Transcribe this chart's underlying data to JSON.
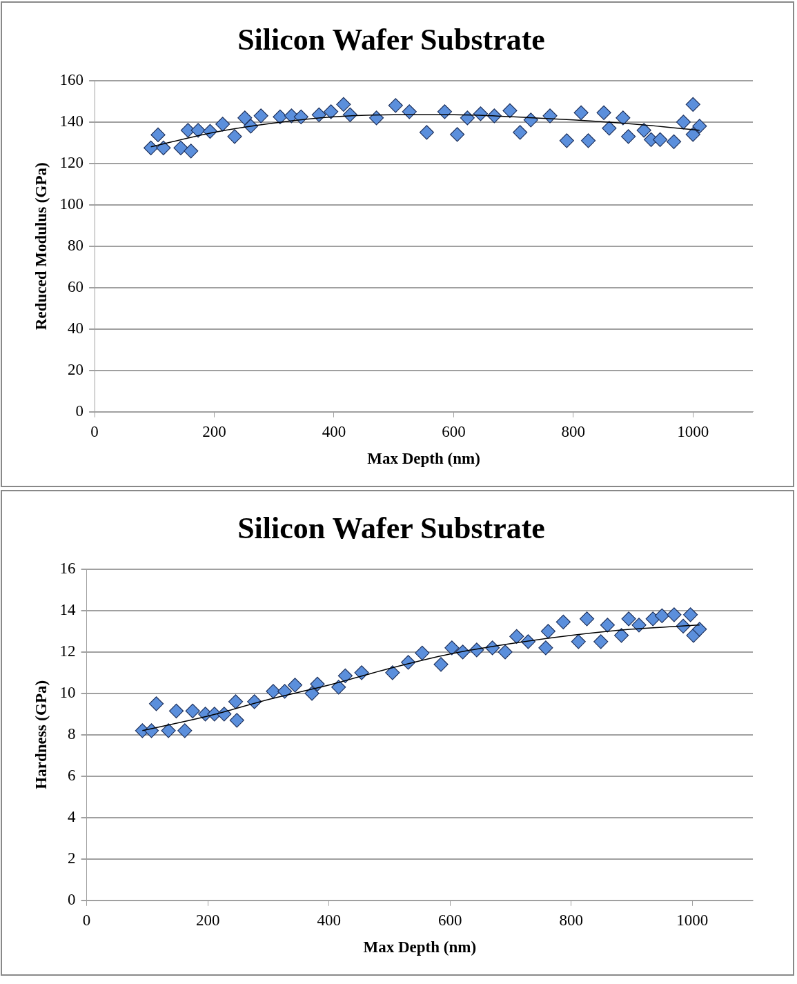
{
  "chart_data": [
    {
      "type": "scatter",
      "title": "Silicon Wafer Substrate",
      "xlabel": "Max Depth (nm)",
      "ylabel": "Reduced Modulus (GPa)",
      "xlim": [
        0,
        1100
      ],
      "xticks": [
        0,
        200,
        400,
        600,
        800,
        1000
      ],
      "ylim": [
        0,
        160
      ],
      "yticks": [
        0,
        20,
        40,
        60,
        80,
        100,
        120,
        140,
        160
      ],
      "grid": "y",
      "legend": false,
      "marker": "diamond",
      "series": [
        {
          "color": "#5b8fdc",
          "x": [
            94,
            106,
            115,
            144,
            156,
            161,
            173,
            193,
            214,
            234,
            251,
            261,
            278,
            310,
            329,
            345,
            375,
            395,
            416,
            427,
            471,
            503,
            526,
            555,
            585,
            606,
            623,
            645,
            668,
            694,
            711,
            729,
            761,
            789,
            813,
            825,
            851,
            860,
            883,
            892,
            918,
            930,
            945,
            968,
            984,
            1000,
            1000,
            1011
          ],
          "values": [
            127.5,
            133.8,
            127.5,
            127.5,
            136,
            126,
            136,
            135.5,
            139,
            133,
            142,
            138,
            143,
            142.5,
            143,
            142.5,
            143.5,
            145,
            148.5,
            143.5,
            142,
            148,
            145,
            135,
            145,
            134,
            142,
            144,
            143,
            145.5,
            135,
            141,
            143,
            131,
            144.5,
            131,
            144.5,
            137,
            142,
            133,
            136,
            131.5,
            131.5,
            130.5,
            140,
            148.5,
            134,
            138
          ]
        },
        {
          "type": "line",
          "color": "#000000",
          "marker": "none",
          "x": [
            94,
            200,
            300,
            400,
            500,
            600,
            700,
            800,
            900,
            1011
          ],
          "values": [
            128,
            135,
            139.5,
            142.5,
            143.5,
            143.5,
            142.5,
            141,
            139,
            136
          ]
        }
      ]
    },
    {
      "type": "scatter",
      "title": "Silicon Wafer Substrate",
      "xlabel": "Max Depth (nm)",
      "ylabel": "Hardness (GPa)",
      "xlim": [
        0,
        1100
      ],
      "xticks": [
        0,
        200,
        400,
        600,
        800,
        1000
      ],
      "ylim": [
        0,
        16
      ],
      "yticks": [
        0,
        2,
        4,
        6,
        8,
        10,
        12,
        14,
        16
      ],
      "grid": "y",
      "legend": false,
      "marker": "diamond",
      "series": [
        {
          "color": "#5b8fdc",
          "x": [
            92,
            107,
            115,
            135,
            148,
            162,
            175,
            196,
            211,
            227,
            246,
            248,
            277,
            308,
            327,
            344,
            372,
            381,
            416,
            427,
            454,
            505,
            531,
            554,
            585,
            603,
            621,
            644,
            670,
            691,
            710,
            729,
            758,
            762,
            787,
            812,
            826,
            849,
            860,
            883,
            895,
            912,
            935,
            950,
            970,
            985,
            997,
            1002,
            1012
          ],
          "values": [
            8.2,
            8.2,
            9.5,
            8.2,
            9.15,
            8.2,
            9.15,
            9.0,
            9.0,
            9.0,
            9.6,
            8.7,
            9.6,
            10.1,
            10.1,
            10.4,
            10.0,
            10.45,
            10.3,
            10.85,
            11.0,
            11.0,
            11.5,
            11.95,
            11.4,
            12.2,
            12.0,
            12.1,
            12.2,
            12.0,
            12.75,
            12.5,
            12.2,
            13.0,
            13.45,
            12.5,
            13.6,
            12.5,
            13.3,
            12.8,
            13.6,
            13.3,
            13.6,
            13.75,
            13.8,
            13.25,
            13.8,
            12.8,
            13.1
          ]
        },
        {
          "type": "line",
          "color": "#000000",
          "marker": "none",
          "x": [
            92,
            200,
            300,
            400,
            500,
            600,
            700,
            800,
            900,
            1012
          ],
          "values": [
            8.2,
            8.9,
            9.7,
            10.4,
            11.2,
            11.9,
            12.4,
            12.8,
            13.1,
            13.3
          ]
        }
      ]
    }
  ]
}
